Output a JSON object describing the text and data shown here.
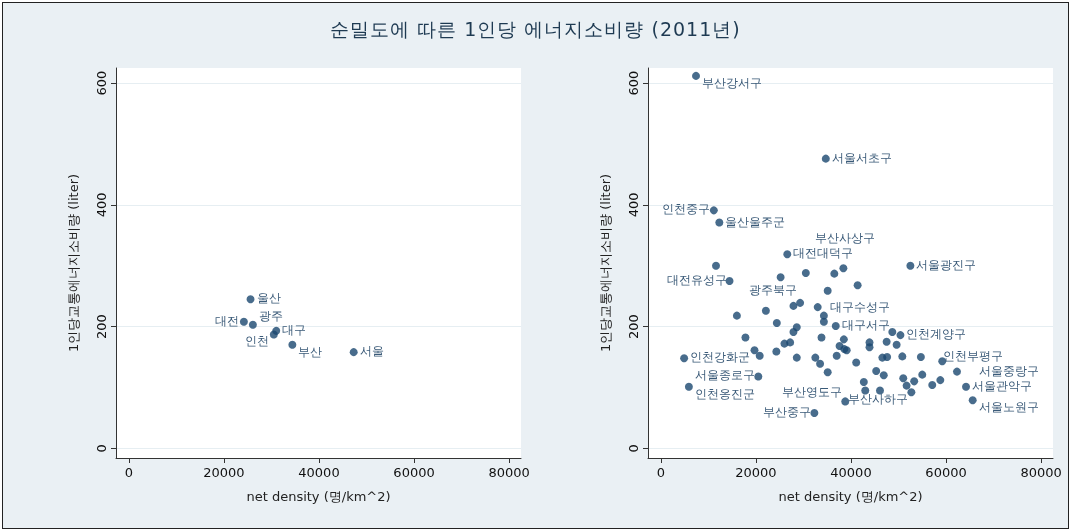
{
  "chart_data": [
    {
      "type": "scatter",
      "title": "순밀도에 따른 1인당 에너지소비량 (2011년)",
      "xlabel": "net density (명/km^2)",
      "ylabel": "1인당교통에너지소비량 (liter)",
      "color": "#1a476f",
      "marker": "circle",
      "grid": "y",
      "xlim": [
        -2700,
        82500
      ],
      "ylim": [
        -16,
        625
      ],
      "xticks": [
        0,
        20000,
        40000,
        60000,
        80000
      ],
      "yticks": [
        0,
        200,
        400,
        600
      ],
      "x": [
        25600,
        24200,
        26100,
        31000,
        30500,
        34400,
        47300
      ],
      "values": [
        245,
        208,
        203,
        193,
        187,
        170,
        158
      ],
      "annotations": [
        {
          "text": "울산",
          "x": 25600,
          "y": 245
        },
        {
          "text": "대전",
          "x": 24200,
          "y": 208
        },
        {
          "text": "광주",
          "x": 26100,
          "y": 203
        },
        {
          "text": "대구",
          "x": 31000,
          "y": 193
        },
        {
          "text": "인천",
          "x": 30500,
          "y": 187
        },
        {
          "text": "부산",
          "x": 34400,
          "y": 170
        },
        {
          "text": "서울",
          "x": 47300,
          "y": 158
        }
      ]
    },
    {
      "type": "scatter",
      "xlabel": "net density (명/km^2)",
      "ylabel": "1인당교통에너지소비량 (liter)",
      "color": "#1a476f",
      "marker": "circle",
      "grid": "y",
      "xlim": [
        -2700,
        82500
      ],
      "ylim": [
        -16,
        625
      ],
      "xticks": [
        0,
        20000,
        40000,
        60000,
        80000
      ],
      "yticks": [
        0,
        200,
        400,
        600
      ],
      "x": [
        7400,
        34700,
        11150,
        12300,
        26600,
        11600,
        38400,
        52500,
        14450,
        25200,
        30500,
        36500,
        41400,
        35100,
        29300,
        27900,
        33000,
        22100,
        16000,
        34300,
        34300,
        24400,
        36800,
        28600,
        27900,
        48700,
        50400,
        17800,
        33800,
        38500,
        26000,
        27200,
        43900,
        47500,
        49600,
        43900,
        37600,
        19700,
        24300,
        39100,
        38600,
        4900,
        20800,
        28600,
        32500,
        37000,
        33500,
        41100,
        46600,
        47600,
        50800,
        54700,
        59200,
        35100,
        20500,
        45300,
        46900,
        51000,
        53300,
        55000,
        58800,
        62300,
        5900,
        42700,
        43000,
        46100,
        51700,
        52700,
        57100,
        64200,
        38800,
        65600,
        32300
      ],
      "values": [
        612,
        476,
        391,
        371,
        319,
        300,
        296,
        300,
        275,
        281,
        288,
        287,
        268,
        259,
        239,
        234,
        232,
        226,
        218,
        218,
        208,
        206,
        201,
        199,
        191,
        191,
        186,
        182,
        182,
        179,
        172,
        174,
        174,
        175,
        170,
        166,
        168,
        161,
        159,
        161,
        163,
        148,
        152,
        149,
        149,
        152,
        139,
        141,
        149,
        150,
        151,
        150,
        143,
        125,
        118,
        127,
        120,
        115,
        110,
        121,
        112,
        126,
        101,
        109,
        95,
        95,
        103,
        92,
        104,
        101,
        77,
        79,
        58
      ],
      "annotations": [
        {
          "text": "부산강서구",
          "x": 7400,
          "y": 612
        },
        {
          "text": "서울서초구",
          "x": 34700,
          "y": 476
        },
        {
          "text": "인천중구",
          "x": 11150,
          "y": 391
        },
        {
          "text": "울산울주군",
          "x": 12300,
          "y": 371
        },
        {
          "text": "대전대덕구",
          "x": 26600,
          "y": 319
        },
        {
          "text": "부산사상구",
          "x": 38400,
          "y": 296
        },
        {
          "text": "서울광진구",
          "x": 52500,
          "y": 300
        },
        {
          "text": "대전유성구",
          "x": 14450,
          "y": 275
        },
        {
          "text": "광주북구",
          "x": 29300,
          "y": 239
        },
        {
          "text": "대구수성구",
          "x": 34300,
          "y": 218
        },
        {
          "text": "대구서구",
          "x": 36800,
          "y": 201
        },
        {
          "text": "인천계양구",
          "x": 50400,
          "y": 186
        },
        {
          "text": "인천강화군",
          "x": 4900,
          "y": 148
        },
        {
          "text": "인천부평구",
          "x": 54700,
          "y": 150
        },
        {
          "text": "서울종로구",
          "x": 20500,
          "y": 118
        },
        {
          "text": "부산사하구",
          "x": 45300,
          "y": 127
        },
        {
          "text": "서울중랑구",
          "x": 62300,
          "y": 126
        },
        {
          "text": "인천옹진군",
          "x": 5900,
          "y": 101
        },
        {
          "text": "서울관악구",
          "x": 64200,
          "y": 101
        },
        {
          "text": "부산영도구",
          "x": 38800,
          "y": 77
        },
        {
          "text": "서울노원구",
          "x": 65600,
          "y": 79
        },
        {
          "text": "부산중구",
          "x": 32300,
          "y": 58
        }
      ]
    }
  ]
}
